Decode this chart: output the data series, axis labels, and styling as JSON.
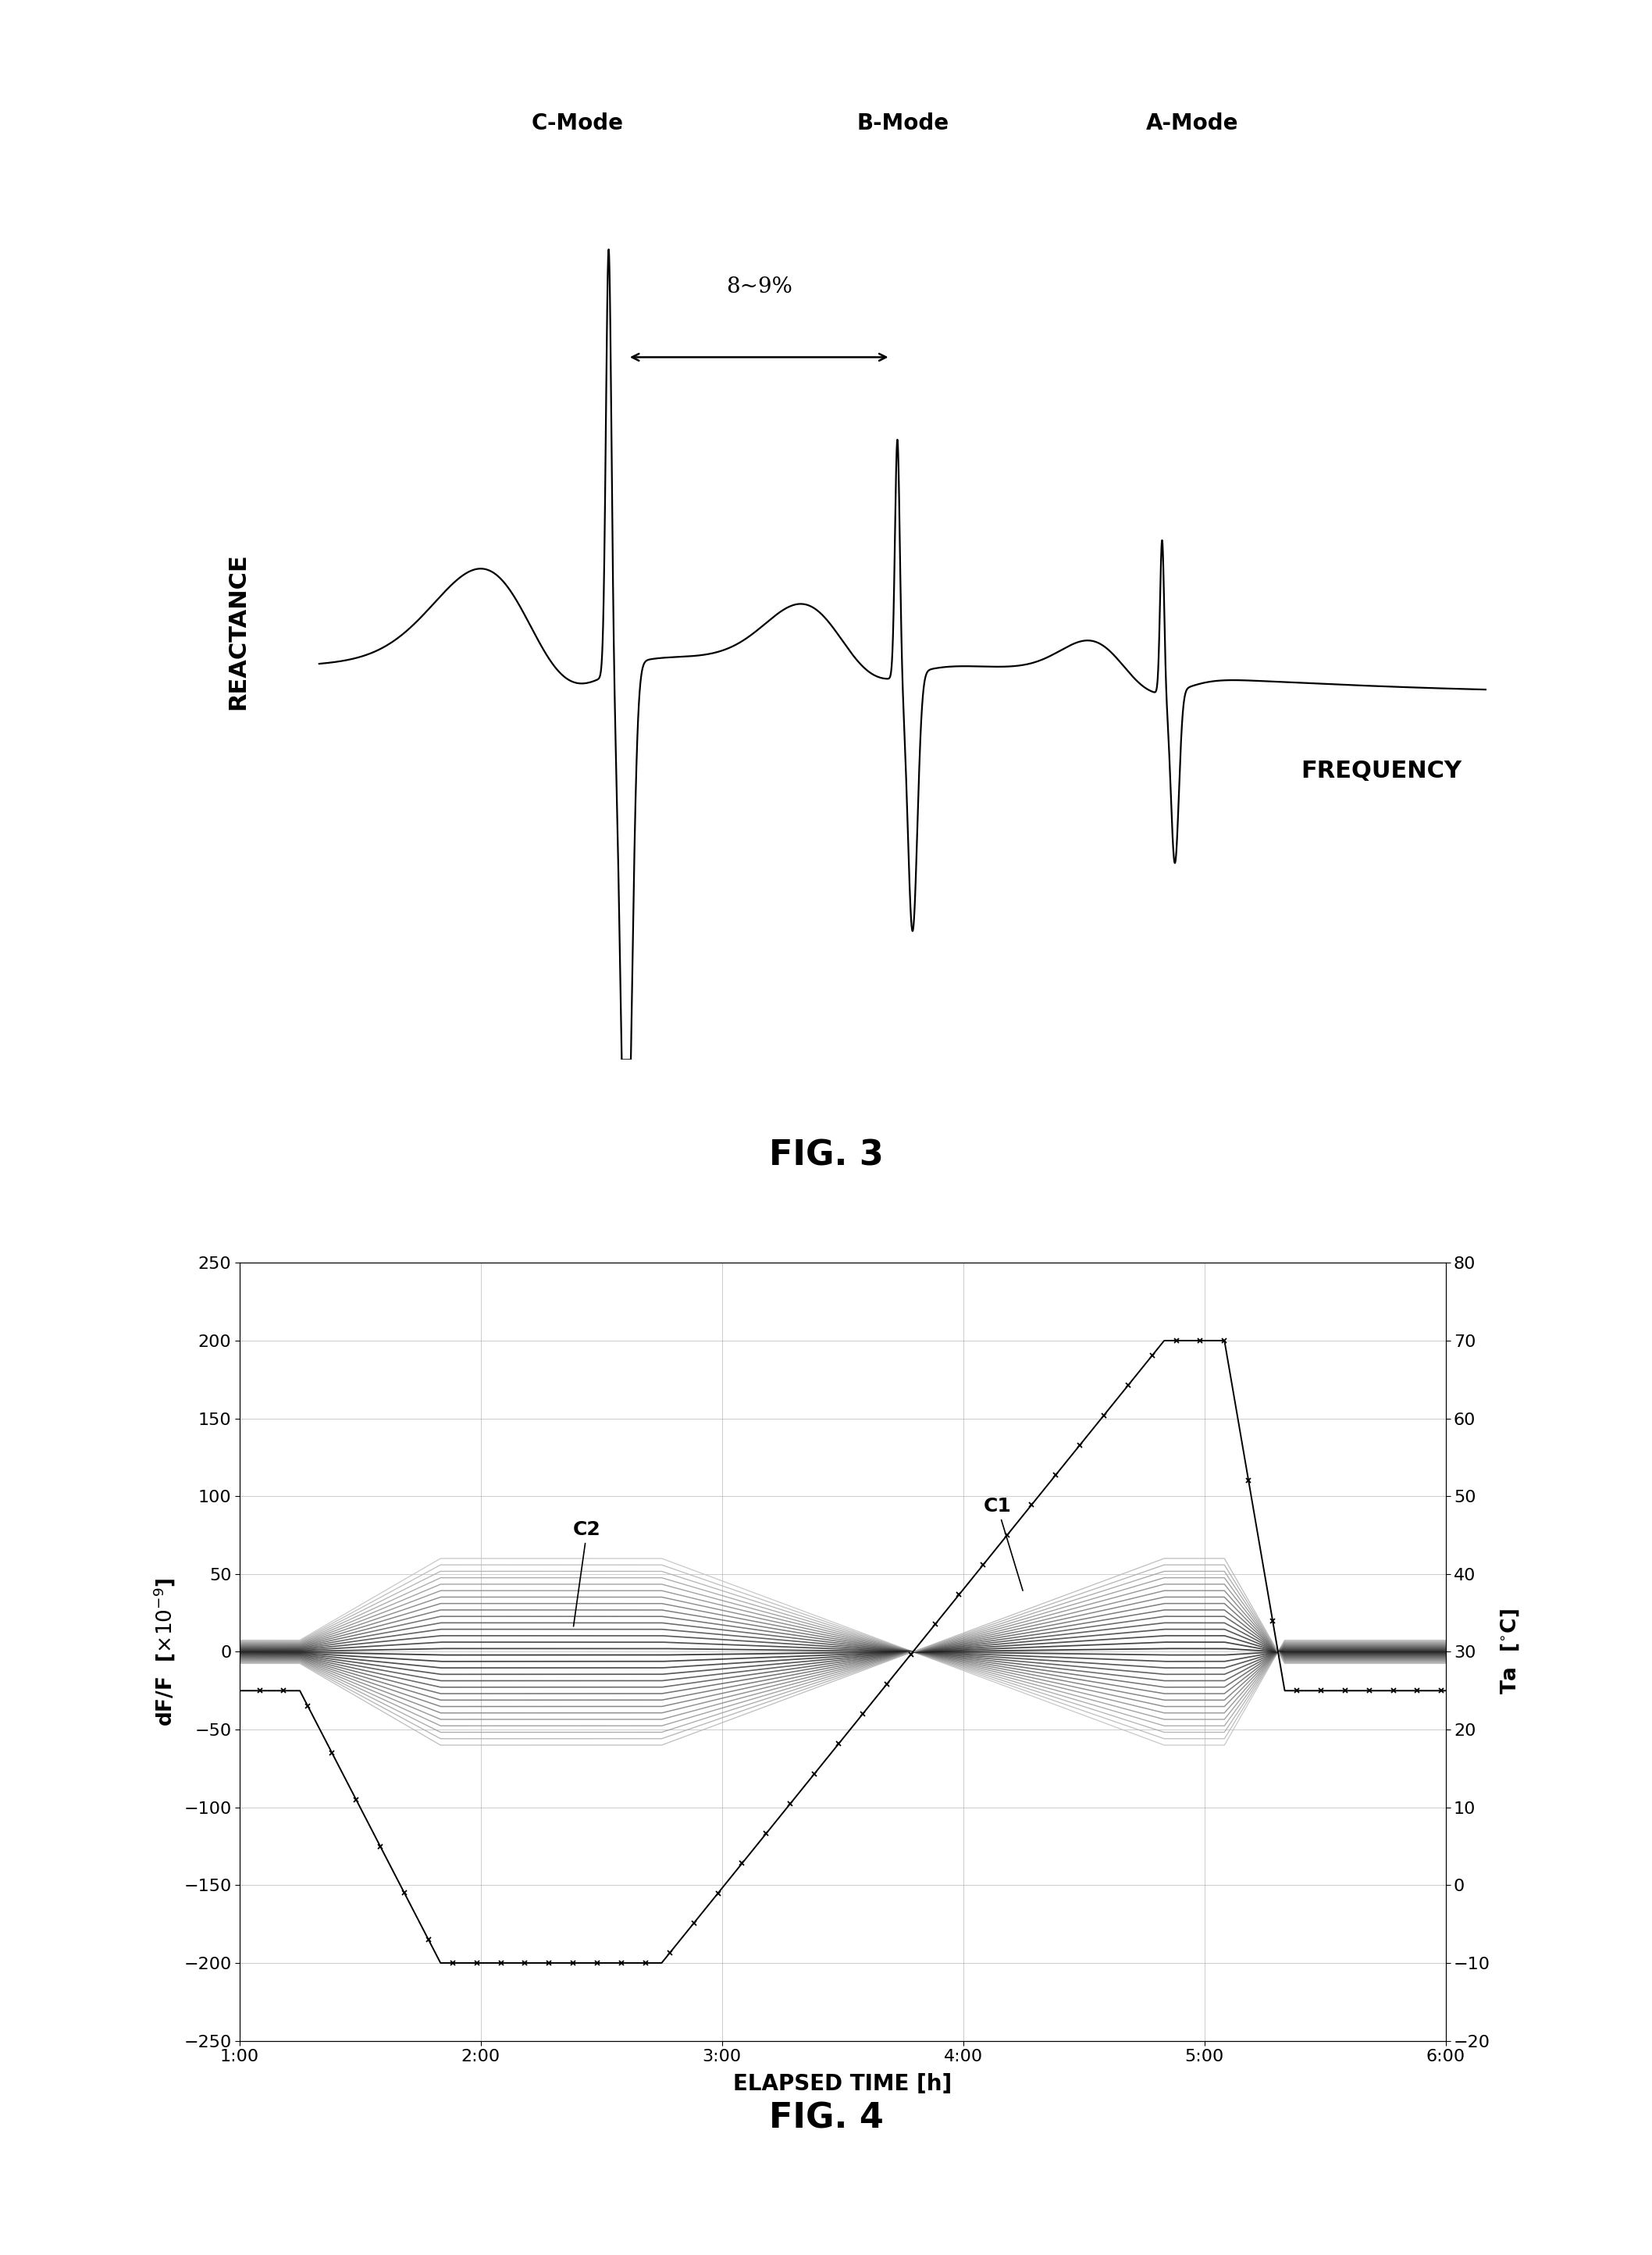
{
  "fig3_title": "FIG. 3",
  "fig3_xlabel": "FREQUENCY",
  "fig3_ylabel": "REACTANCE",
  "fig3_modes": [
    "C-Mode",
    "B-Mode",
    "A-Mode"
  ],
  "fig3_annotation": "8~9%",
  "fig4_title": "FIG. 4",
  "fig4_xlabel": "ELAPSED TIME [h]",
  "fig4_ylabel_left": "dF/F  [x10^-9]",
  "fig4_ylabel_right": "Ta  [C]",
  "fig4_yticks_left": [
    -250,
    -200,
    -150,
    -100,
    -50,
    0,
    50,
    100,
    150,
    200,
    250
  ],
  "fig4_yticks_right": [
    -20,
    -10,
    0,
    10,
    20,
    30,
    40,
    50,
    60,
    70,
    80
  ],
  "fig4_xtick_labels": [
    "1:00",
    "2:00",
    "3:00",
    "4:00",
    "5:00",
    "6:00"
  ],
  "fig4_label_C1": "C1",
  "fig4_label_C2": "C2",
  "background_color": "#ffffff",
  "line_color": "#000000",
  "grid_color": "#999999"
}
